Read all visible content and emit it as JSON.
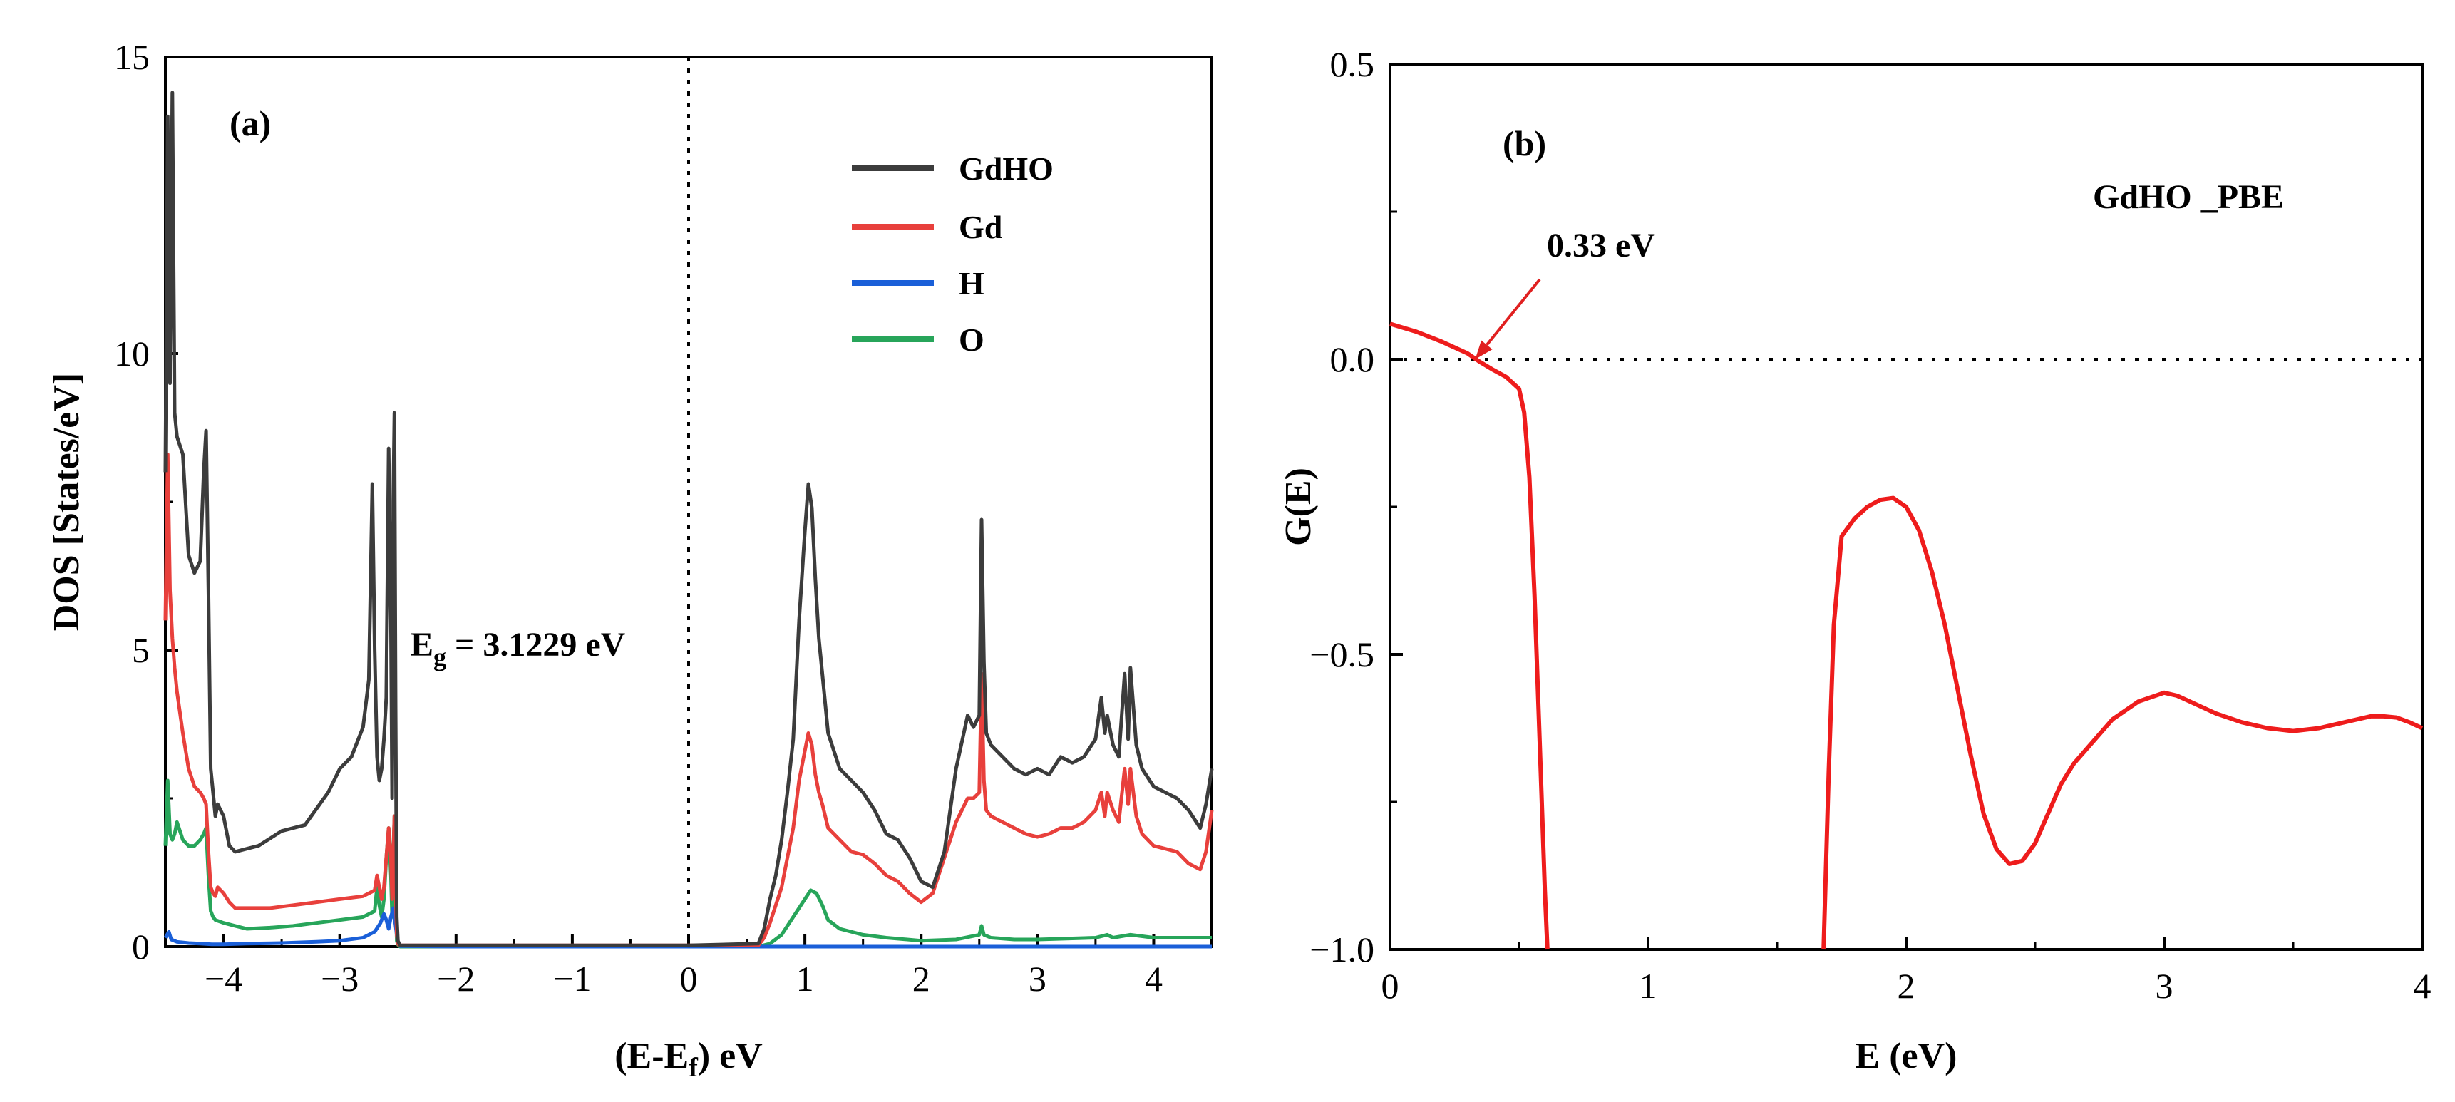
{
  "chart_data": [
    {
      "panel": "(a)",
      "type": "line",
      "xlabel": "(E-E",
      "xlabel_sub": "f",
      "xlabel_suffix": ") eV",
      "ylabel": "DOS [States/eV]",
      "xlim": [
        -4.5,
        4.5
      ],
      "ylim": [
        0,
        15
      ],
      "xticks": [
        -4,
        -3,
        -2,
        -1,
        0,
        1,
        2,
        3,
        4
      ],
      "yticks": [
        0,
        5,
        10,
        15
      ],
      "vline_x": 0,
      "annotation": {
        "main": "E",
        "sub": "g",
        "rest": " = 3.1229 eV"
      },
      "legend_position": "top-right",
      "series": [
        {
          "name": "GdHO",
          "color": "#3c3c3c",
          "x": [
            -4.5,
            -4.48,
            -4.46,
            -4.44,
            -4.42,
            -4.4,
            -4.35,
            -4.3,
            -4.25,
            -4.2,
            -4.17,
            -4.15,
            -4.13,
            -4.11,
            -4.09,
            -4.07,
            -4.05,
            -4.0,
            -3.95,
            -3.9,
            -3.8,
            -3.7,
            -3.5,
            -3.3,
            -3.1,
            -3.0,
            -2.9,
            -2.8,
            -2.75,
            -2.72,
            -2.7,
            -2.68,
            -2.66,
            -2.64,
            -2.62,
            -2.6,
            -2.58,
            -2.56,
            -2.55,
            -2.54,
            -2.53,
            -2.52,
            -2.51,
            -2.5,
            -2.49,
            -2.48,
            -2.3,
            -2.0,
            -1.0,
            0.0,
            0.6,
            0.65,
            0.7,
            0.75,
            0.8,
            0.85,
            0.9,
            0.95,
            1.0,
            1.03,
            1.06,
            1.09,
            1.12,
            1.15,
            1.2,
            1.3,
            1.4,
            1.5,
            1.6,
            1.7,
            1.8,
            1.9,
            2.0,
            2.1,
            2.2,
            2.3,
            2.4,
            2.45,
            2.5,
            2.52,
            2.54,
            2.56,
            2.6,
            2.7,
            2.8,
            2.9,
            3.0,
            3.1,
            3.2,
            3.3,
            3.4,
            3.5,
            3.55,
            3.58,
            3.6,
            3.65,
            3.7,
            3.75,
            3.78,
            3.8,
            3.85,
            3.9,
            4.0,
            4.1,
            4.2,
            4.3,
            4.4,
            4.45,
            4.5
          ],
          "y": [
            8.0,
            14.0,
            9.5,
            14.4,
            9.0,
            8.6,
            8.3,
            6.6,
            6.3,
            6.5,
            8.0,
            8.7,
            6.0,
            3.0,
            2.6,
            2.2,
            2.4,
            2.2,
            1.7,
            1.6,
            1.65,
            1.7,
            1.95,
            2.05,
            2.6,
            3.0,
            3.2,
            3.7,
            4.5,
            7.8,
            5.0,
            3.2,
            2.8,
            3.0,
            3.5,
            4.2,
            8.4,
            5.5,
            2.5,
            7.5,
            9.0,
            4.0,
            0.5,
            0.1,
            0.05,
            0.02,
            0.02,
            0.02,
            0.02,
            0.02,
            0.05,
            0.3,
            0.8,
            1.2,
            1.8,
            2.6,
            3.5,
            5.5,
            7.0,
            7.8,
            7.4,
            6.2,
            5.2,
            4.6,
            3.6,
            3.0,
            2.8,
            2.6,
            2.3,
            1.9,
            1.8,
            1.5,
            1.1,
            1.0,
            1.6,
            3.0,
            3.9,
            3.7,
            3.9,
            7.2,
            4.8,
            3.6,
            3.4,
            3.2,
            3.0,
            2.9,
            3.0,
            2.9,
            3.2,
            3.1,
            3.2,
            3.5,
            4.2,
            3.6,
            3.9,
            3.4,
            3.2,
            4.6,
            3.5,
            4.7,
            3.4,
            3.0,
            2.7,
            2.6,
            2.5,
            2.3,
            2.0,
            2.4,
            3.0
          ]
        },
        {
          "name": "Gd",
          "color": "#e8403c",
          "x": [
            -4.5,
            -4.48,
            -4.46,
            -4.44,
            -4.42,
            -4.4,
            -4.35,
            -4.3,
            -4.25,
            -4.2,
            -4.17,
            -4.15,
            -4.13,
            -4.11,
            -4.09,
            -4.07,
            -4.05,
            -4.0,
            -3.95,
            -3.9,
            -3.8,
            -3.6,
            -3.4,
            -3.2,
            -3.0,
            -2.8,
            -2.7,
            -2.68,
            -2.66,
            -2.64,
            -2.62,
            -2.6,
            -2.58,
            -2.56,
            -2.55,
            -2.54,
            -2.53,
            -2.52,
            -2.51,
            -2.5,
            -2.49,
            -2.48,
            -2.3,
            -2.0,
            -1.0,
            0.0,
            0.6,
            0.65,
            0.7,
            0.75,
            0.8,
            0.85,
            0.9,
            0.95,
            1.0,
            1.03,
            1.06,
            1.09,
            1.12,
            1.15,
            1.2,
            1.3,
            1.4,
            1.5,
            1.6,
            1.7,
            1.8,
            1.9,
            2.0,
            2.1,
            2.2,
            2.3,
            2.4,
            2.45,
            2.5,
            2.52,
            2.54,
            2.56,
            2.6,
            2.7,
            2.8,
            2.9,
            3.0,
            3.1,
            3.2,
            3.3,
            3.4,
            3.5,
            3.55,
            3.58,
            3.6,
            3.65,
            3.7,
            3.75,
            3.78,
            3.8,
            3.85,
            3.9,
            4.0,
            4.1,
            4.2,
            4.3,
            4.4,
            4.45,
            4.5
          ],
          "y": [
            5.5,
            8.3,
            6.0,
            5.2,
            4.7,
            4.3,
            3.6,
            3.0,
            2.7,
            2.6,
            2.5,
            2.4,
            1.6,
            1.0,
            0.9,
            0.85,
            1.0,
            0.9,
            0.75,
            0.65,
            0.65,
            0.65,
            0.7,
            0.75,
            0.8,
            0.85,
            0.95,
            1.2,
            1.0,
            0.8,
            1.0,
            1.5,
            2.0,
            1.5,
            0.8,
            1.5,
            2.2,
            1.0,
            0.2,
            0.05,
            0.02,
            0.02,
            0.02,
            0.02,
            0.02,
            0.02,
            0.02,
            0.15,
            0.4,
            0.7,
            1.0,
            1.5,
            2.0,
            2.8,
            3.3,
            3.6,
            3.4,
            2.9,
            2.6,
            2.4,
            2.0,
            1.8,
            1.6,
            1.55,
            1.4,
            1.2,
            1.1,
            0.9,
            0.75,
            0.9,
            1.5,
            2.1,
            2.5,
            2.5,
            2.6,
            4.6,
            2.8,
            2.3,
            2.2,
            2.1,
            2.0,
            1.9,
            1.85,
            1.9,
            2.0,
            2.0,
            2.1,
            2.3,
            2.6,
            2.2,
            2.6,
            2.3,
            2.1,
            3.0,
            2.4,
            3.0,
            2.2,
            1.9,
            1.7,
            1.65,
            1.6,
            1.4,
            1.3,
            1.6,
            2.3
          ]
        },
        {
          "name": "H",
          "color": "#1a5fd8",
          "x": [
            -4.5,
            -4.47,
            -4.45,
            -4.4,
            -4.3,
            -4.2,
            -4.1,
            -4.0,
            -3.8,
            -3.5,
            -3.2,
            -3.0,
            -2.8,
            -2.7,
            -2.65,
            -2.62,
            -2.6,
            -2.58,
            -2.56,
            -2.54,
            -2.52,
            -2.5,
            -2.48,
            -2.0,
            -1.0,
            0.0,
            1.0,
            2.0,
            3.0,
            4.0,
            4.5
          ],
          "y": [
            0.15,
            0.25,
            0.12,
            0.08,
            0.06,
            0.05,
            0.04,
            0.04,
            0.05,
            0.06,
            0.08,
            0.1,
            0.15,
            0.25,
            0.4,
            0.55,
            0.45,
            0.3,
            0.5,
            0.65,
            0.35,
            0.05,
            0.01,
            0.0,
            0.0,
            0.0,
            0.0,
            0.0,
            0.0,
            0.0,
            0.0
          ]
        },
        {
          "name": "O",
          "color": "#27a55a",
          "x": [
            -4.5,
            -4.48,
            -4.46,
            -4.44,
            -4.42,
            -4.4,
            -4.35,
            -4.3,
            -4.25,
            -4.2,
            -4.17,
            -4.15,
            -4.13,
            -4.11,
            -4.09,
            -4.07,
            -4.0,
            -3.9,
            -3.8,
            -3.6,
            -3.4,
            -3.2,
            -3.0,
            -2.8,
            -2.7,
            -2.68,
            -2.66,
            -2.64,
            -2.62,
            -2.6,
            -2.58,
            -2.56,
            -2.55,
            -2.54,
            -2.53,
            -2.52,
            -2.51,
            -2.5,
            -2.49,
            -2.48,
            -2.0,
            -1.0,
            0.0,
            0.6,
            0.7,
            0.8,
            0.9,
            1.0,
            1.05,
            1.1,
            1.15,
            1.2,
            1.3,
            1.5,
            1.7,
            2.0,
            2.3,
            2.5,
            2.52,
            2.54,
            2.6,
            2.8,
            3.0,
            3.5,
            3.6,
            3.65,
            3.8,
            4.0,
            4.5
          ],
          "y": [
            1.7,
            2.8,
            1.9,
            1.8,
            1.9,
            2.1,
            1.8,
            1.7,
            1.7,
            1.8,
            1.9,
            2.0,
            1.2,
            0.6,
            0.5,
            0.45,
            0.4,
            0.35,
            0.3,
            0.32,
            0.35,
            0.4,
            0.45,
            0.5,
            0.6,
            1.0,
            0.7,
            0.5,
            0.8,
            1.5,
            2.0,
            1.2,
            0.5,
            1.6,
            2.2,
            0.8,
            0.1,
            0.03,
            0.01,
            0.0,
            0.0,
            0.0,
            0.0,
            0.0,
            0.05,
            0.2,
            0.5,
            0.8,
            0.95,
            0.9,
            0.7,
            0.45,
            0.3,
            0.2,
            0.15,
            0.1,
            0.12,
            0.2,
            0.35,
            0.2,
            0.15,
            0.12,
            0.12,
            0.15,
            0.2,
            0.15,
            0.2,
            0.15,
            0.15
          ]
        }
      ]
    },
    {
      "panel": "(b)",
      "type": "line",
      "xlabel": "E (eV)",
      "ylabel": "G(E)",
      "xlim": [
        0,
        4
      ],
      "ylim": [
        -1.0,
        0.5
      ],
      "xticks": [
        0,
        1,
        2,
        3,
        4
      ],
      "xtick_labels": [
        "0",
        "1",
        "2",
        "3",
        "4"
      ],
      "yticks": [
        -1.0,
        -0.5,
        0.0,
        0.5
      ],
      "ytick_labels": [
        "−1.0",
        "−0.5",
        "0.0",
        "0.5"
      ],
      "hline_y": 0,
      "legend_label": "GdHO _PBE",
      "annotation": {
        "text": "0.33 eV",
        "points_to": [
          0.33,
          0.0
        ]
      },
      "series": [
        {
          "name": "G(E)",
          "color": "#ee1c1c",
          "segments": [
            {
              "x": [
                0.0,
                0.1,
                0.2,
                0.3,
                0.35,
                0.4,
                0.45,
                0.5,
                0.52,
                0.54,
                0.56,
                0.58,
                0.6,
                0.61
              ],
              "y": [
                0.06,
                0.047,
                0.03,
                0.01,
                -0.005,
                -0.018,
                -0.03,
                -0.05,
                -0.09,
                -0.2,
                -0.4,
                -0.65,
                -0.9,
                -1.0
              ]
            },
            {
              "x": [
                1.68,
                1.7,
                1.72,
                1.75,
                1.8,
                1.85,
                1.9,
                1.95,
                2.0,
                2.05,
                2.1,
                2.15,
                2.2,
                2.25,
                2.3,
                2.35,
                2.4,
                2.45,
                2.5,
                2.55,
                2.6,
                2.65,
                2.7,
                2.8,
                2.9,
                3.0,
                3.05,
                3.1,
                3.2,
                3.3,
                3.4,
                3.5,
                3.6,
                3.7,
                3.8,
                3.85,
                3.9,
                3.95,
                4.0
              ],
              "y": [
                -1.0,
                -0.7,
                -0.45,
                -0.3,
                -0.27,
                -0.25,
                -0.238,
                -0.235,
                -0.25,
                -0.29,
                -0.36,
                -0.45,
                -0.56,
                -0.67,
                -0.77,
                -0.83,
                -0.855,
                -0.85,
                -0.82,
                -0.77,
                -0.72,
                -0.685,
                -0.66,
                -0.61,
                -0.58,
                -0.565,
                -0.57,
                -0.58,
                -0.6,
                -0.615,
                -0.625,
                -0.63,
                -0.625,
                -0.615,
                -0.605,
                -0.605,
                -0.607,
                -0.615,
                -0.625
              ]
            }
          ]
        }
      ]
    }
  ]
}
